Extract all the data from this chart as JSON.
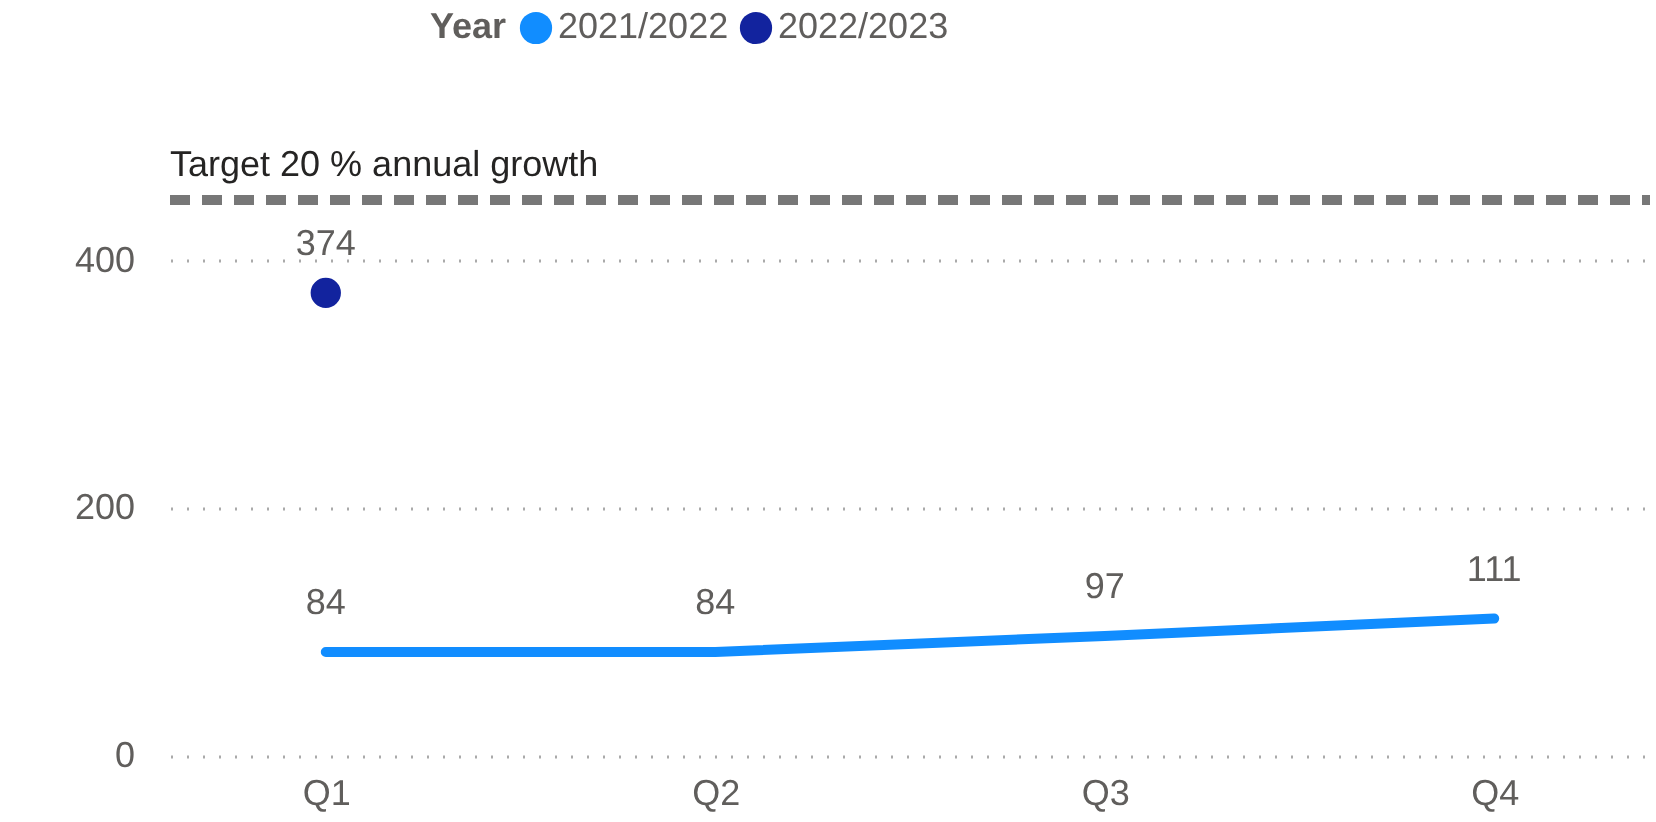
{
  "chart_data": {
    "type": "line",
    "legend_title": "Year",
    "legend": "top",
    "categories": [
      "Q1",
      "Q2",
      "Q3",
      "Q4"
    ],
    "series": [
      {
        "name": "2021/2022",
        "color": "#118dff",
        "marker": "none",
        "values": [
          84,
          84,
          97,
          111
        ]
      },
      {
        "name": "2022/2023",
        "color": "#12239e",
        "type": "scatter",
        "marker": "circle",
        "values": [
          374,
          null,
          null,
          null
        ]
      }
    ],
    "ylim": [
      0,
      449
    ],
    "yticks": [
      0,
      200,
      400
    ],
    "grid": "y",
    "data_labels": true,
    "ref_lines": [
      {
        "axis": "y",
        "value": 449,
        "label": "Target 20 % annual growth",
        "color": "#777777",
        "line_style": "dashed"
      }
    ]
  }
}
